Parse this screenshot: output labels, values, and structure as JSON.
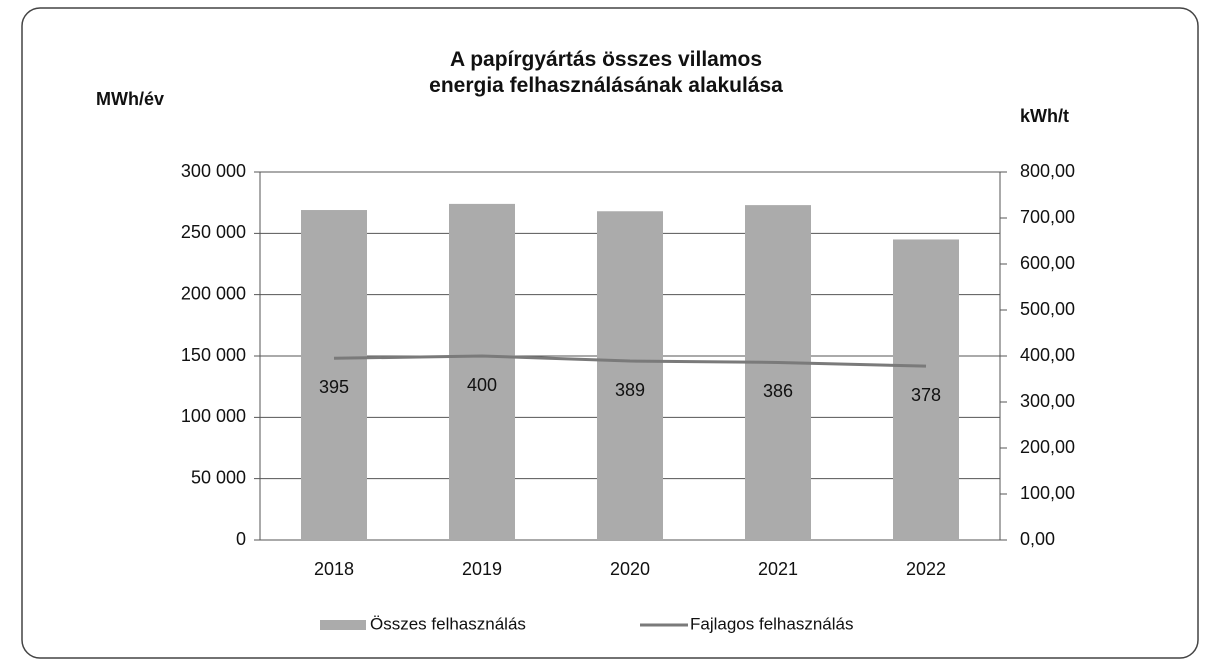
{
  "chart_data": {
    "type": "bar",
    "title": "A papírgyártás összes villamos energia felhasználásának alakulása",
    "y_label": "MWh/év",
    "y2_label": "kWh/t",
    "categories": [
      "2018",
      "2019",
      "2020",
      "2021",
      "2022"
    ],
    "series": [
      {
        "name": "Összes felhasználás",
        "type": "bar",
        "color": "#ababab",
        "values": [
          269000,
          274000,
          268000,
          273000,
          245000
        ]
      },
      {
        "name": "Fajlagos felhasználás",
        "type": "line",
        "axis": "y2",
        "color": "#7a7a7a",
        "values": [
          395,
          400,
          389,
          386,
          378
        ]
      }
    ],
    "ylim": [
      0,
      300000
    ],
    "yticks": [
      0,
      {
        "value": 50000,
        "label": "50 000"
      },
      {
        "value": 100000,
        "label": "100 000"
      },
      {
        "value": 150000,
        "label": "150 000"
      },
      {
        "value": 200000,
        "label": "200 000"
      },
      {
        "value": 250000,
        "label": "250 000"
      },
      {
        "value": 300000,
        "label": "300 000"
      }
    ],
    "y2lim": [
      0,
      800
    ],
    "y2ticks": [
      {
        "value": 0,
        "label": "0,00"
      },
      {
        "value": 100,
        "label": "100,00"
      },
      {
        "value": 200,
        "label": "200,00"
      },
      {
        "value": 300,
        "label": "300,00"
      },
      {
        "value": 400,
        "label": "400,00"
      },
      {
        "value": 500,
        "label": "500,00"
      },
      {
        "value": 600,
        "label": "600,00"
      },
      {
        "value": 700,
        "label": "700,00"
      },
      {
        "value": 800,
        "label": "800,00"
      }
    ],
    "grid": true,
    "legend": "bottom"
  }
}
